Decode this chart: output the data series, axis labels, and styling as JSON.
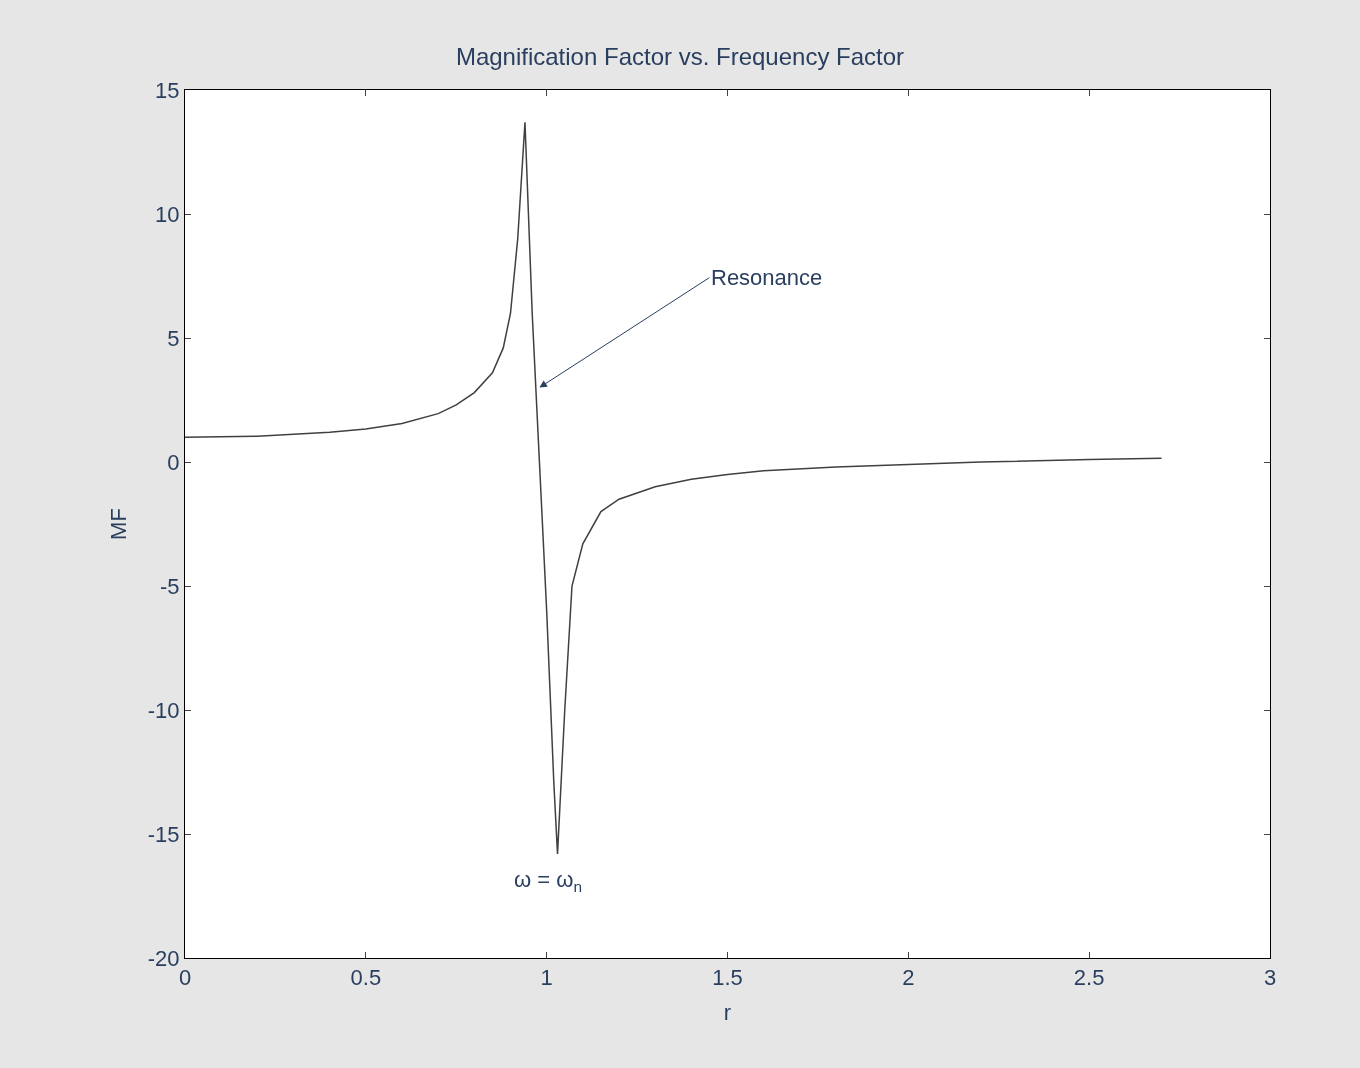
{
  "chart_data": {
    "type": "line",
    "title": "Magnification Factor vs. Frequency Factor",
    "xlabel": "r",
    "ylabel": "MF",
    "x": [
      0,
      0.2,
      0.4,
      0.5,
      0.6,
      0.7,
      0.75,
      0.8,
      0.85,
      0.88,
      0.9,
      0.92,
      0.94,
      0.96,
      0.98,
      1.0,
      1.02,
      1.03,
      1.05,
      1.07,
      1.1,
      1.15,
      1.2,
      1.3,
      1.4,
      1.5,
      1.6,
      1.8,
      2.0,
      2.2,
      2.5,
      2.7
    ],
    "series": [
      {
        "color": "#404040",
        "values": [
          1,
          1.04,
          1.2,
          1.33,
          1.55,
          1.95,
          2.3,
          2.8,
          3.6,
          4.6,
          6,
          9,
          13.7,
          6,
          0,
          -6,
          -13,
          -15.8,
          -10,
          -5,
          -3.3,
          -2,
          -1.5,
          -1,
          -0.7,
          -0.5,
          -0.35,
          -0.2,
          -0.1,
          0,
          0.1,
          0.15
        ]
      }
    ],
    "xlim": [
      0,
      3
    ],
    "xticks": [
      0,
      0.5,
      1,
      1.5,
      2,
      2.5,
      3
    ],
    "ylim": [
      -20,
      15
    ],
    "yticks": [
      -20,
      -15,
      -10,
      -5,
      0,
      5,
      10,
      15
    ],
    "marker": "none",
    "line_style": "solid",
    "annotations": [
      {
        "text": "Resonance",
        "x": 0.98,
        "y": 3
      },
      "ω = ω$_{n}$"
    ]
  }
}
